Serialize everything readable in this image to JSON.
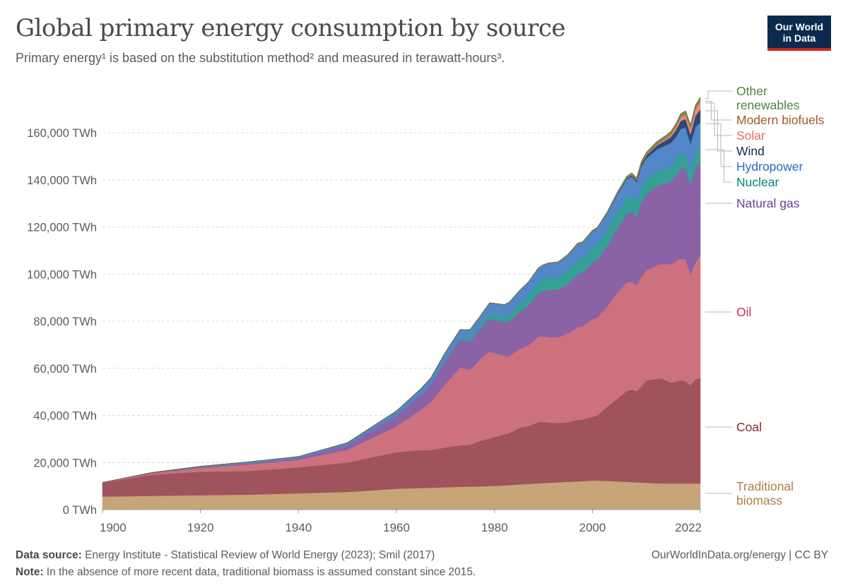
{
  "header": {
    "title": "Global primary energy consumption by source",
    "subtitle": "Primary energy¹ is based on the substitution method² and measured in terawatt-hours³.",
    "logo_line1": "Our World",
    "logo_line2": "in Data"
  },
  "footer": {
    "source_label": "Data source:",
    "source_text": " Energy Institute - Statistical Review of World Energy (2023); Smil (2017)",
    "note_label": "Note:",
    "note_text": " In the absence of more recent data, traditional biomass is assumed constant since 2015.",
    "link": "OurWorldInData.org/energy | CC BY"
  },
  "chart_data": {
    "type": "area",
    "stacked": true,
    "title": "Global primary energy consumption by source",
    "xlabel": "",
    "ylabel": "",
    "xlim": [
      1900,
      2022
    ],
    "ylim": [
      0,
      180000
    ],
    "grid": true,
    "legend_placement": "right (end-of-line labels)",
    "x_ticks": [
      1900,
      1920,
      1940,
      1960,
      1980,
      2000,
      2022
    ],
    "x_tick_labels": [
      "1900",
      "1920",
      "1940",
      "1960",
      "1980",
      "2000",
      "2022"
    ],
    "y_ticks": [
      0,
      20000,
      40000,
      60000,
      80000,
      100000,
      120000,
      140000,
      160000
    ],
    "y_tick_labels": [
      "0 TWh",
      "20,000 TWh",
      "40,000 TWh",
      "60,000 TWh",
      "80,000 TWh",
      "100,000 TWh",
      "120,000 TWh",
      "140,000 TWh",
      "160,000 TWh"
    ],
    "x": [
      1900,
      1910,
      1920,
      1930,
      1940,
      1950,
      1960,
      1965,
      1967,
      1970,
      1973,
      1975,
      1977,
      1979,
      1980,
      1982,
      1983,
      1985,
      1987,
      1989,
      1990,
      1991,
      1993,
      1995,
      1997,
      1998,
      2000,
      2001,
      2003,
      2005,
      2007,
      2008,
      2009,
      2010,
      2011,
      2013,
      2014,
      2015,
      2016,
      2017,
      2018,
      2019,
      2020,
      2021,
      2022
    ],
    "series": [
      {
        "name": "Traditional biomass",
        "color": "#c8a578",
        "label_color": "#b07c48",
        "values": [
          5556,
          5833,
          6111,
          6389,
          6944,
          7500,
          8889,
          9200,
          9300,
          9500,
          9700,
          9800,
          9900,
          10000,
          10100,
          10300,
          10400,
          10700,
          10900,
          11200,
          11300,
          11400,
          11600,
          11800,
          12000,
          12100,
          12300,
          12300,
          12200,
          12000,
          11800,
          11700,
          11600,
          11500,
          11400,
          11200,
          11111,
          11111,
          11111,
          11111,
          11111,
          11111,
          11111,
          11111,
          11111
        ]
      },
      {
        "name": "Coal",
        "color": "#9f535c",
        "label_color": "#8a2433",
        "values": [
          5728,
          9000,
          10000,
          10000,
          11000,
          12500,
          15500,
          16100,
          16000,
          16900,
          17600,
          17700,
          19200,
          20200,
          20700,
          21700,
          22000,
          24000,
          24600,
          26000,
          25900,
          25600,
          25200,
          25300,
          26100,
          26200,
          27000,
          27700,
          31500,
          35000,
          38600,
          39200,
          38700,
          41000,
          43500,
          44300,
          44600,
          43700,
          42900,
          43200,
          43900,
          43400,
          41700,
          44200,
          44800
        ]
      },
      {
        "name": "Oil",
        "color": "#cd717e",
        "label_color": "#c22e4d",
        "values": [
          181,
          600,
          1600,
          2800,
          3200,
          5400,
          11000,
          17100,
          20400,
          27000,
          33000,
          31800,
          34600,
          37000,
          35700,
          33300,
          32800,
          33300,
          34400,
          36300,
          36400,
          36200,
          36300,
          37700,
          39400,
          39400,
          41500,
          41600,
          42600,
          44800,
          46100,
          45700,
          44900,
          46400,
          46800,
          48100,
          48500,
          49500,
          50200,
          51000,
          51500,
          51600,
          47000,
          49600,
          52000
        ]
      },
      {
        "name": "Natural gas",
        "color": "#8a63a6",
        "label_color": "#6c3e97",
        "values": [
          64,
          200,
          300,
          500,
          700,
          2100,
          4600,
          6400,
          7200,
          10000,
          12000,
          12000,
          12700,
          14000,
          14200,
          14300,
          14700,
          15600,
          16900,
          18500,
          19300,
          20000,
          20300,
          21000,
          22600,
          22800,
          24000,
          24400,
          25700,
          27300,
          29000,
          29800,
          29000,
          31600,
          32200,
          33500,
          33700,
          34400,
          35200,
          36300,
          38300,
          38900,
          38200,
          40300,
          39400
        ]
      },
      {
        "name": "Nuclear",
        "color": "#35a095",
        "label_color": "#00847e",
        "values": [
          0,
          0,
          0,
          0,
          0,
          0,
          0,
          50,
          80,
          210,
          540,
          1010,
          1310,
          1780,
          2010,
          2410,
          2820,
          3570,
          4350,
          4860,
          5040,
          5210,
          5350,
          5650,
          5920,
          6010,
          6240,
          6400,
          6510,
          6760,
          6660,
          6610,
          6460,
          6580,
          6150,
          5930,
          6010,
          6100,
          6170,
          6210,
          6320,
          6460,
          6250,
          6480,
          6090
        ]
      },
      {
        "name": "Hydropower",
        "color": "#5287c8",
        "label_color": "#286bbb",
        "values": [
          0,
          100,
          400,
          600,
          700,
          900,
          1900,
          2500,
          2900,
          3200,
          3600,
          4000,
          4200,
          4700,
          4800,
          4900,
          5200,
          5400,
          5500,
          5600,
          5800,
          6000,
          6100,
          6500,
          6700,
          6700,
          7000,
          6900,
          7100,
          7700,
          8100,
          8400,
          8400,
          8700,
          9100,
          9700,
          9900,
          9900,
          10200,
          10300,
          10600,
          10700,
          11000,
          10800,
          11000
        ]
      },
      {
        "name": "Wind",
        "color": "#2d4a77",
        "label_color": "#0c2a4e",
        "values": [
          0,
          0,
          0,
          0,
          0,
          0,
          0,
          0,
          0,
          0,
          0,
          0,
          0,
          0,
          0,
          0,
          0,
          0,
          0,
          5,
          10,
          10,
          20,
          20,
          30,
          40,
          80,
          100,
          160,
          270,
          470,
          590,
          750,
          940,
          1170,
          1630,
          1830,
          2150,
          2450,
          2890,
          3290,
          3660,
          4120,
          4740,
          5490
        ]
      },
      {
        "name": "Solar",
        "color": "#ee8b76",
        "label_color": "#e56e5a",
        "values": [
          0,
          0,
          0,
          0,
          0,
          0,
          0,
          0,
          0,
          0,
          0,
          0,
          0,
          0,
          0,
          0,
          0,
          0,
          0,
          0,
          1,
          1,
          1,
          2,
          2,
          2,
          3,
          3,
          5,
          10,
          20,
          30,
          50,
          80,
          170,
          360,
          450,
          600,
          770,
          1080,
          1400,
          1730,
          2140,
          2600,
          3330
        ]
      },
      {
        "name": "Modern biofuels",
        "color": "#c26a4d",
        "label_color": "#a2572f",
        "values": [
          0,
          0,
          0,
          0,
          0,
          0,
          0,
          0,
          0,
          0,
          0,
          0,
          0,
          0,
          0,
          5,
          10,
          20,
          30,
          35,
          40,
          45,
          50,
          55,
          60,
          65,
          70,
          80,
          110,
          170,
          260,
          330,
          390,
          470,
          490,
          530,
          570,
          590,
          620,
          650,
          690,
          710,
          660,
          690,
          720
        ]
      },
      {
        "name": "Other renewables",
        "color": "#6b9a4e",
        "label_color": "#4c8538",
        "values": [
          0,
          0,
          0,
          0,
          0,
          0,
          5,
          10,
          15,
          20,
          30,
          40,
          50,
          70,
          80,
          100,
          110,
          130,
          160,
          190,
          200,
          220,
          260,
          290,
          310,
          320,
          340,
          350,
          380,
          410,
          460,
          490,
          520,
          570,
          620,
          700,
          740,
          780,
          820,
          870,
          920,
          950,
          980,
          1050,
          1100
        ]
      }
    ]
  }
}
